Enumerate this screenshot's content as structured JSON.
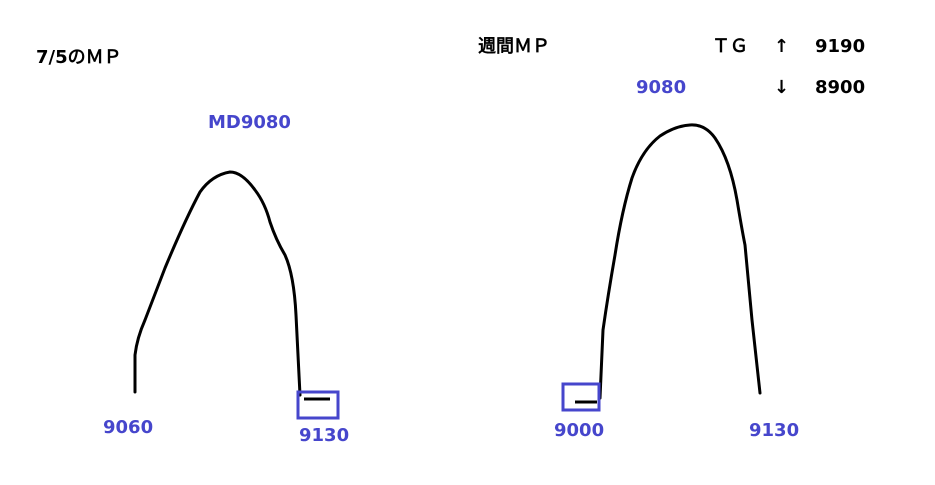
{
  "left_profile": {
    "title": "7/5のＭＰ",
    "md_label": "MD9080",
    "low_label": "9060",
    "high_label": "9130"
  },
  "right_profile": {
    "title": "週間ＭＰ",
    "peak_label": "9080",
    "low_label": "9000",
    "high_label": "9130"
  },
  "targets": {
    "label": "ＴＧ",
    "up_arrow": "↑",
    "up_value": "9190",
    "down_arrow": "↓",
    "down_value": "8900"
  },
  "colors": {
    "accent": "#4646cc",
    "line": "#000000"
  }
}
